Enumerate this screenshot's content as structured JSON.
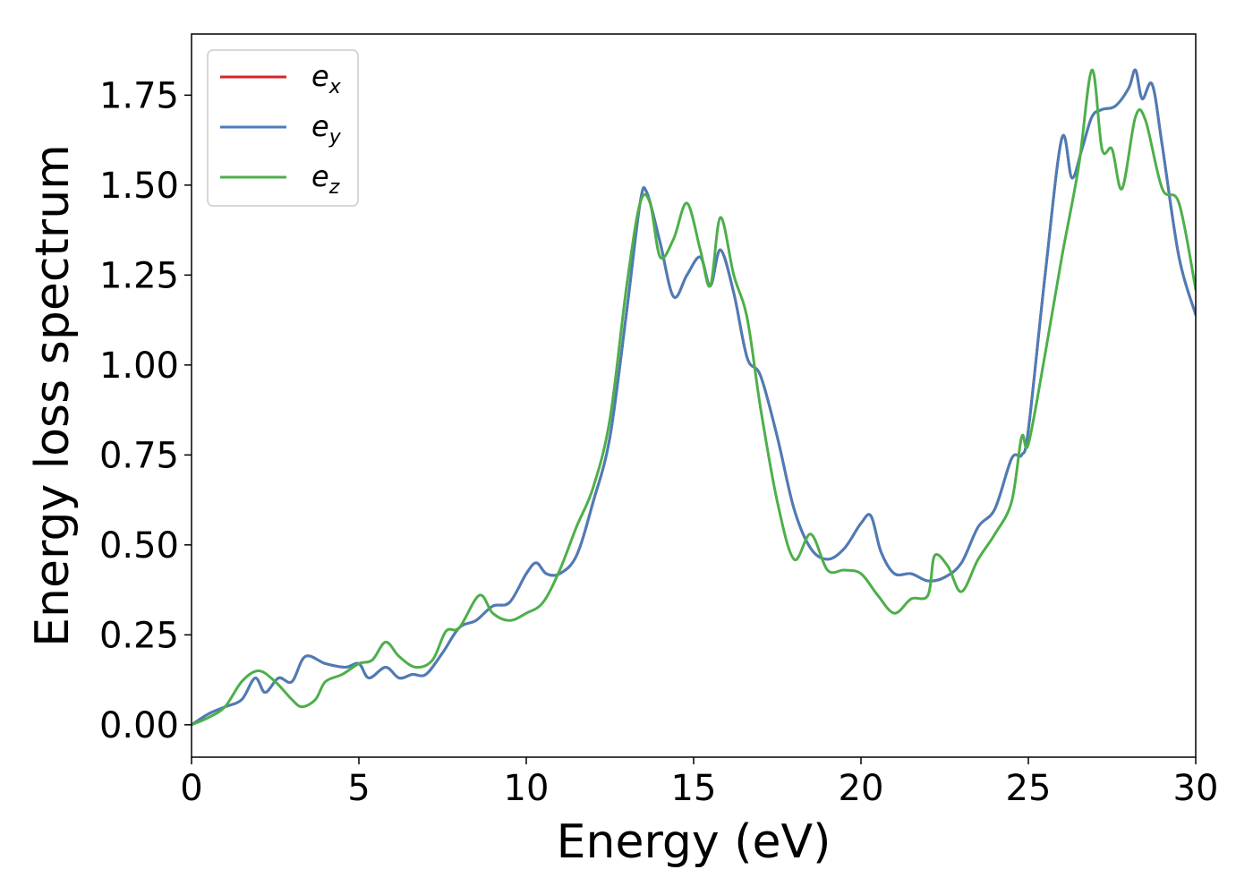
{
  "chart_data": {
    "type": "line",
    "title": "",
    "xlabel": "Energy (eV)",
    "ylabel": "Energy loss spectrum",
    "xlim": [
      0,
      30
    ],
    "ylim": [
      -0.09,
      1.92
    ],
    "xticks": [
      "0",
      "5",
      "10",
      "15",
      "20",
      "25",
      "30"
    ],
    "xtick_values": [
      0,
      5,
      10,
      15,
      20,
      25,
      30
    ],
    "yticks": [
      "0.00",
      "0.25",
      "0.50",
      "0.75",
      "1.00",
      "1.25",
      "1.50",
      "1.75"
    ],
    "ytick_values": [
      0,
      0.25,
      0.5,
      0.75,
      1.0,
      1.25,
      1.5,
      1.75
    ],
    "grid": false,
    "legend": {
      "placement": "top-left"
    },
    "series": [
      {
        "name": "e",
        "subscript": "x",
        "color": "#d62728",
        "x": [
          0,
          0.5,
          1.0,
          1.5,
          1.9,
          2.2,
          2.6,
          3.0,
          3.4,
          4.0,
          4.6,
          5.0,
          5.3,
          5.8,
          6.2,
          6.6,
          7.0,
          7.5,
          8.0,
          8.5,
          9.0,
          9.5,
          10.0,
          10.3,
          10.6,
          11.0,
          11.5,
          12.0,
          12.5,
          13.0,
          13.4,
          13.6,
          14.0,
          14.4,
          14.8,
          15.2,
          15.5,
          15.8,
          16.2,
          16.6,
          17.0,
          17.5,
          18.0,
          18.5,
          19.0,
          19.5,
          20.0,
          20.3,
          20.6,
          21.0,
          21.5,
          22.0,
          22.5,
          23.0,
          23.5,
          24.0,
          24.5,
          24.8,
          25.0,
          25.5,
          26.0,
          26.3,
          26.6,
          26.9,
          27.2,
          27.6,
          28.0,
          28.2,
          28.4,
          28.7,
          29.0,
          29.5,
          30.0
        ],
        "y": [
          0.0,
          0.03,
          0.05,
          0.07,
          0.13,
          0.09,
          0.13,
          0.12,
          0.19,
          0.17,
          0.16,
          0.17,
          0.13,
          0.16,
          0.13,
          0.14,
          0.14,
          0.2,
          0.27,
          0.29,
          0.33,
          0.34,
          0.42,
          0.45,
          0.42,
          0.42,
          0.47,
          0.62,
          0.8,
          1.15,
          1.45,
          1.48,
          1.34,
          1.19,
          1.25,
          1.3,
          1.22,
          1.32,
          1.2,
          1.02,
          0.97,
          0.8,
          0.6,
          0.49,
          0.46,
          0.49,
          0.56,
          0.58,
          0.48,
          0.42,
          0.42,
          0.4,
          0.41,
          0.45,
          0.55,
          0.6,
          0.74,
          0.75,
          0.82,
          1.25,
          1.63,
          1.52,
          1.6,
          1.69,
          1.71,
          1.72,
          1.77,
          1.82,
          1.74,
          1.78,
          1.61,
          1.3,
          1.14
        ]
      },
      {
        "name": "e",
        "subscript": "y",
        "color": "#4a7db8",
        "x": [
          0,
          0.5,
          1.0,
          1.5,
          1.9,
          2.2,
          2.6,
          3.0,
          3.4,
          4.0,
          4.6,
          5.0,
          5.3,
          5.8,
          6.2,
          6.6,
          7.0,
          7.5,
          8.0,
          8.5,
          9.0,
          9.5,
          10.0,
          10.3,
          10.6,
          11.0,
          11.5,
          12.0,
          12.5,
          13.0,
          13.4,
          13.6,
          14.0,
          14.4,
          14.8,
          15.2,
          15.5,
          15.8,
          16.2,
          16.6,
          17.0,
          17.5,
          18.0,
          18.5,
          19.0,
          19.5,
          20.0,
          20.3,
          20.6,
          21.0,
          21.5,
          22.0,
          22.5,
          23.0,
          23.5,
          24.0,
          24.5,
          24.8,
          25.0,
          25.5,
          26.0,
          26.3,
          26.6,
          26.9,
          27.2,
          27.6,
          28.0,
          28.2,
          28.4,
          28.7,
          29.0,
          29.5,
          30.0
        ],
        "y": [
          0.0,
          0.03,
          0.05,
          0.07,
          0.13,
          0.09,
          0.13,
          0.12,
          0.19,
          0.17,
          0.16,
          0.17,
          0.13,
          0.16,
          0.13,
          0.14,
          0.14,
          0.2,
          0.27,
          0.29,
          0.33,
          0.34,
          0.42,
          0.45,
          0.42,
          0.42,
          0.47,
          0.62,
          0.8,
          1.15,
          1.45,
          1.48,
          1.34,
          1.19,
          1.25,
          1.3,
          1.22,
          1.32,
          1.2,
          1.02,
          0.97,
          0.8,
          0.6,
          0.49,
          0.46,
          0.49,
          0.56,
          0.58,
          0.48,
          0.42,
          0.42,
          0.4,
          0.41,
          0.45,
          0.55,
          0.6,
          0.74,
          0.75,
          0.82,
          1.25,
          1.63,
          1.52,
          1.6,
          1.69,
          1.71,
          1.72,
          1.77,
          1.82,
          1.74,
          1.78,
          1.61,
          1.3,
          1.14
        ]
      },
      {
        "name": "e",
        "subscript": "z",
        "color": "#4daf4a",
        "x": [
          0,
          0.5,
          1.0,
          1.5,
          2.0,
          2.5,
          3.0,
          3.3,
          3.7,
          4.0,
          4.5,
          5.0,
          5.4,
          5.8,
          6.2,
          6.7,
          7.2,
          7.6,
          8.0,
          8.6,
          9.0,
          9.5,
          10.0,
          10.5,
          11.0,
          11.5,
          12.0,
          12.5,
          13.0,
          13.4,
          13.7,
          14.0,
          14.4,
          14.8,
          15.2,
          15.5,
          15.8,
          16.2,
          16.6,
          17.0,
          17.5,
          18.0,
          18.5,
          19.0,
          19.5,
          20.0,
          20.5,
          21.0,
          21.5,
          22.0,
          22.2,
          22.6,
          23.0,
          23.5,
          24.0,
          24.5,
          24.8,
          25.0,
          25.5,
          26.0,
          26.5,
          26.9,
          27.2,
          27.5,
          27.8,
          28.2,
          28.5,
          29.0,
          29.5,
          30.0
        ],
        "y": [
          0.0,
          0.02,
          0.05,
          0.12,
          0.15,
          0.12,
          0.07,
          0.05,
          0.07,
          0.12,
          0.14,
          0.17,
          0.18,
          0.23,
          0.19,
          0.16,
          0.18,
          0.26,
          0.27,
          0.36,
          0.31,
          0.29,
          0.31,
          0.34,
          0.43,
          0.55,
          0.66,
          0.85,
          1.22,
          1.45,
          1.45,
          1.3,
          1.35,
          1.45,
          1.32,
          1.22,
          1.41,
          1.25,
          1.13,
          0.88,
          0.62,
          0.46,
          0.53,
          0.43,
          0.43,
          0.42,
          0.36,
          0.31,
          0.35,
          0.36,
          0.47,
          0.44,
          0.37,
          0.46,
          0.53,
          0.62,
          0.8,
          0.78,
          1.03,
          1.3,
          1.55,
          1.82,
          1.6,
          1.6,
          1.49,
          1.69,
          1.68,
          1.49,
          1.45,
          1.21
        ]
      }
    ]
  }
}
